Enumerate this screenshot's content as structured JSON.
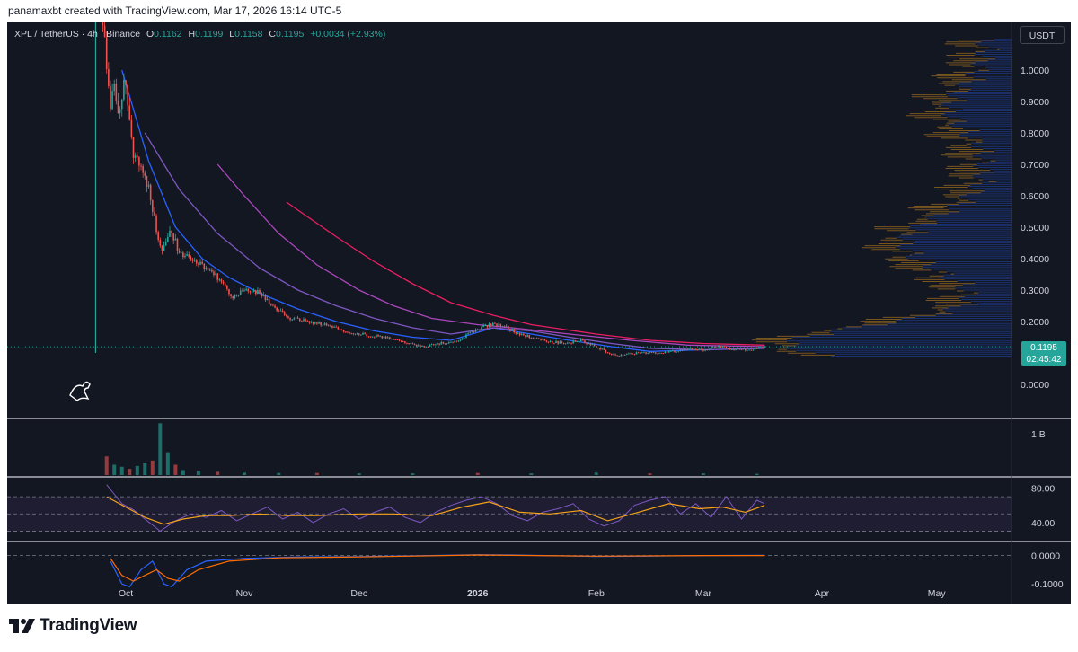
{
  "caption": "panamaxbt created with TradingView.com, Mar 17, 2026 16:14 UTC-5",
  "legend": {
    "symbol": "XPL / TetherUS · 4h · Binance",
    "open_label": "O",
    "open": "0.1162",
    "high_label": "H",
    "high": "0.1199",
    "low_label": "L",
    "low": "0.1158",
    "close_label": "C",
    "close": "0.1195",
    "change": "+0.0034 (+2.93%)"
  },
  "unit": "USDT",
  "last_price": {
    "price": "0.1195",
    "countdown": "02:45:42"
  },
  "brand": "TradingView",
  "colors": {
    "background": "#131722",
    "up": "#26a69a",
    "down": "#ef5350",
    "rsi": "#7e57c2",
    "rsi_ma": "#f7a21b",
    "macd": "#2962ff",
    "signal": "#ff6d00"
  },
  "chart_data": [
    {
      "type": "line",
      "panel": "price",
      "ylabel": "USDT",
      "ylim": [
        0,
        1.1
      ],
      "y_ticks": [
        "1.0000",
        "0.9000",
        "0.8000",
        "0.7000",
        "0.6000",
        "0.5000",
        "0.4000",
        "0.3000",
        "0.2000",
        "0.0000"
      ],
      "x_ticks": [
        "Oct",
        "Nov",
        "Dec",
        "2026",
        "Feb",
        "Mar",
        "Apr",
        "May"
      ],
      "series": [
        {
          "points": [
            [
              "Sep 25",
              1.15
            ],
            [
              "Sep 26",
              1.0
            ],
            [
              "Sep 27",
              0.87
            ],
            [
              "Sep 28",
              0.96
            ],
            [
              "Sep 29",
              0.84
            ],
            [
              "Sep 30",
              0.93
            ],
            [
              "Oct 1",
              0.98
            ],
            [
              "Oct 2",
              0.82
            ],
            [
              "Oct 3",
              0.74
            ],
            [
              "Oct 5",
              0.7
            ],
            [
              "Oct 7",
              0.63
            ],
            [
              "Oct 9",
              0.49
            ],
            [
              "Oct 10",
              0.44
            ],
            [
              "Oct 11",
              0.43
            ],
            [
              "Oct 13",
              0.49
            ],
            [
              "Oct 15",
              0.41
            ],
            [
              "Oct 18",
              0.4
            ],
            [
              "Oct 22",
              0.37
            ],
            [
              "Oct 26",
              0.33
            ],
            [
              "Oct 29",
              0.28
            ],
            [
              "Nov 2",
              0.3
            ],
            [
              "Nov 5",
              0.29
            ],
            [
              "Nov 9",
              0.24
            ],
            [
              "Nov 13",
              0.21
            ],
            [
              "Nov 18",
              0.2
            ],
            [
              "Nov 22",
              0.19
            ],
            [
              "Nov 27",
              0.17
            ],
            [
              "Dec 2",
              0.16
            ],
            [
              "Dec 7",
              0.15
            ],
            [
              "Dec 12",
              0.14
            ],
            [
              "Dec 17",
              0.12
            ],
            [
              "Dec 22",
              0.13
            ],
            [
              "Dec 27",
              0.14
            ],
            [
              "Dec 31",
              0.17
            ],
            [
              "Jan 4",
              0.19
            ],
            [
              "Jan 7",
              0.19
            ],
            [
              "Jan 12",
              0.16
            ],
            [
              "Jan 18",
              0.14
            ],
            [
              "Jan 24",
              0.13
            ],
            [
              "Jan 28",
              0.14
            ],
            [
              "Feb 1",
              0.12
            ],
            [
              "Feb 6",
              0.09
            ],
            [
              "Feb 12",
              0.1
            ],
            [
              "Feb 18",
              0.1
            ],
            [
              "Feb 24",
              0.11
            ],
            [
              "Mar 1",
              0.11
            ],
            [
              "Mar 5",
              0.12
            ],
            [
              "Mar 9",
              0.11
            ],
            [
              "Mar 13",
              0.11
            ],
            [
              "Mar 17",
              0.1195
            ]
          ]
        },
        {
          "points": [
            [
              "Sep 30",
              1.0
            ],
            [
              "Oct 7",
              0.71
            ],
            [
              "Oct 14",
              0.5
            ],
            [
              "Oct 21",
              0.4
            ],
            [
              "Oct 28",
              0.34
            ],
            [
              "Nov 5",
              0.29
            ],
            [
              "Nov 15",
              0.24
            ],
            [
              "Nov 25",
              0.2
            ],
            [
              "Dec 5",
              0.17
            ],
            [
              "Dec 15",
              0.15
            ],
            [
              "Dec 25",
              0.14
            ],
            [
              "Jan 5",
              0.18
            ],
            [
              "Jan 15",
              0.16
            ],
            [
              "Jan 25",
              0.14
            ],
            [
              "Feb 5",
              0.12
            ],
            [
              "Feb 15",
              0.105
            ],
            [
              "Mar 1",
              0.11
            ],
            [
              "Mar 17",
              0.115
            ]
          ]
        },
        {
          "points": [
            [
              "Oct 6",
              0.8
            ],
            [
              "Oct 15",
              0.62
            ],
            [
              "Oct 25",
              0.48
            ],
            [
              "Nov 5",
              0.37
            ],
            [
              "Nov 15",
              0.3
            ],
            [
              "Nov 25",
              0.25
            ],
            [
              "Dec 5",
              0.21
            ],
            [
              "Dec 15",
              0.18
            ],
            [
              "Dec 25",
              0.16
            ],
            [
              "Jan 5",
              0.18
            ],
            [
              "Jan 15",
              0.17
            ],
            [
              "Jan 25",
              0.15
            ],
            [
              "Feb 5",
              0.13
            ],
            [
              "Feb 15",
              0.115
            ],
            [
              "Mar 1",
              0.11
            ],
            [
              "Mar 17",
              0.115
            ]
          ]
        },
        {
          "points": [
            [
              "Oct 25",
              0.7
            ],
            [
              "Nov 1",
              0.6
            ],
            [
              "Nov 10",
              0.48
            ],
            [
              "Nov 20",
              0.38
            ],
            [
              "Dec 1",
              0.3
            ],
            [
              "Dec 10",
              0.25
            ],
            [
              "Dec 20",
              0.21
            ],
            [
              "Jan 1",
              0.19
            ],
            [
              "Jan 10",
              0.18
            ],
            [
              "Jan 25",
              0.16
            ],
            [
              "Feb 10",
              0.14
            ],
            [
              "Feb 25",
              0.125
            ],
            [
              "Mar 17",
              0.12
            ]
          ]
        },
        {
          "points": [
            [
              "Nov 12",
              0.58
            ],
            [
              "Nov 25",
              0.47
            ],
            [
              "Dec 5",
              0.39
            ],
            [
              "Dec 15",
              0.32
            ],
            [
              "Dec 25",
              0.26
            ],
            [
              "Jan 5",
              0.22
            ],
            [
              "Jan 15",
              0.19
            ],
            [
              "Feb 1",
              0.16
            ],
            [
              "Feb 15",
              0.14
            ],
            [
              "Mar 1",
              0.13
            ],
            [
              "Mar 17",
              0.125
            ]
          ]
        }
      ]
    },
    {
      "type": "bar",
      "panel": "volume",
      "y_ticks": [
        "1 B"
      ],
      "categories": [
        "Sep 26",
        "Sep 28",
        "Sep 30",
        "Oct 2",
        "Oct 4",
        "Oct 6",
        "Oct 8",
        "Oct 10",
        "Oct 12",
        "Oct 14",
        "Oct 16",
        "Oct 20",
        "Oct 25",
        "Nov 1",
        "Nov 10",
        "Nov 20",
        "Dec 1",
        "Dec 15",
        "Jan 1",
        "Jan 15",
        "Feb 1",
        "Feb 15",
        "Mar 1",
        "Mar 15"
      ],
      "values": [
        0.45,
        0.25,
        0.2,
        0.15,
        0.22,
        0.3,
        0.35,
        1.25,
        0.55,
        0.25,
        0.12,
        0.1,
        0.08,
        0.06,
        0.05,
        0.05,
        0.04,
        0.04,
        0.05,
        0.04,
        0.06,
        0.04,
        0.04,
        0.03
      ]
    },
    {
      "type": "line",
      "panel": "rsi",
      "ylim": [
        20,
        90
      ],
      "y_ticks": [
        "80.00",
        "40.00"
      ],
      "series": [
        {
          "points": [
            [
              "Sep 26",
              84
            ],
            [
              "Sep 30",
              62
            ],
            [
              "Oct 3",
              55
            ],
            [
              "Oct 6",
              44
            ],
            [
              "Oct 10",
              30
            ],
            [
              "Oct 14",
              42
            ],
            [
              "Oct 18",
              50
            ],
            [
              "Oct 22",
              46
            ],
            [
              "Oct 26",
              54
            ],
            [
              "Oct 30",
              42
            ],
            [
              "Nov 3",
              50
            ],
            [
              "Nov 7",
              58
            ],
            [
              "Nov 11",
              44
            ],
            [
              "Nov 15",
              52
            ],
            [
              "Nov 19",
              40
            ],
            [
              "Nov 23",
              50
            ],
            [
              "Nov 27",
              56
            ],
            [
              "Dec 1",
              44
            ],
            [
              "Dec 5",
              52
            ],
            [
              "Dec 9",
              58
            ],
            [
              "Dec 13",
              46
            ],
            [
              "Dec 17",
              40
            ],
            [
              "Dec 21",
              52
            ],
            [
              "Dec 25",
              60
            ],
            [
              "Dec 29",
              66
            ],
            [
              "Jan 2",
              70
            ],
            [
              "Jan 6",
              62
            ],
            [
              "Jan 10",
              48
            ],
            [
              "Jan 14",
              42
            ],
            [
              "Jan 18",
              52
            ],
            [
              "Jan 22",
              56
            ],
            [
              "Jan 26",
              62
            ],
            [
              "Jan 30",
              44
            ],
            [
              "Feb 3",
              36
            ],
            [
              "Feb 7",
              42
            ],
            [
              "Feb 11",
              60
            ],
            [
              "Feb 15",
              66
            ],
            [
              "Feb 19",
              70
            ],
            [
              "Feb 23",
              50
            ],
            [
              "Feb 27",
              62
            ],
            [
              "Mar 3",
              46
            ],
            [
              "Mar 7",
              70
            ],
            [
              "Mar 11",
              44
            ],
            [
              "Mar 15",
              66
            ],
            [
              "Mar 17",
              62
            ]
          ]
        },
        {
          "points": [
            [
              "Sep 26",
              70
            ],
            [
              "Oct 1",
              58
            ],
            [
              "Oct 6",
              46
            ],
            [
              "Oct 11",
              38
            ],
            [
              "Oct 16",
              44
            ],
            [
              "Oct 22",
              48
            ],
            [
              "Oct 28",
              48
            ],
            [
              "Nov 5",
              50
            ],
            [
              "Nov 12",
              48
            ],
            [
              "Nov 20",
              48
            ],
            [
              "Dec 1",
              50
            ],
            [
              "Dec 10",
              50
            ],
            [
              "Dec 20",
              48
            ],
            [
              "Dec 28",
              58
            ],
            [
              "Jan 4",
              64
            ],
            [
              "Jan 12",
              52
            ],
            [
              "Jan 20",
              50
            ],
            [
              "Jan 28",
              54
            ],
            [
              "Feb 4",
              42
            ],
            [
              "Feb 12",
              52
            ],
            [
              "Feb 20",
              62
            ],
            [
              "Feb 28",
              56
            ],
            [
              "Mar 6",
              58
            ],
            [
              "Mar 12",
              52
            ],
            [
              "Mar 17",
              60
            ]
          ]
        }
      ]
    },
    {
      "type": "line",
      "panel": "macd",
      "ylim": [
        -0.15,
        0.04
      ],
      "y_ticks": [
        "0.0000",
        "-0.1000"
      ],
      "series": [
        {
          "points": [
            [
              "Sep 27",
              -0.02
            ],
            [
              "Sep 30",
              -0.1
            ],
            [
              "Oct 2",
              -0.11
            ],
            [
              "Oct 5",
              -0.05
            ],
            [
              "Oct 8",
              -0.02
            ],
            [
              "Oct 11",
              -0.1
            ],
            [
              "Oct 13",
              -0.11
            ],
            [
              "Oct 17",
              -0.05
            ],
            [
              "Oct 22",
              -0.02
            ],
            [
              "Nov 1",
              -0.01
            ],
            [
              "Nov 15",
              -0.005
            ],
            [
              "Dec 1",
              -0.004
            ],
            [
              "Jan 1",
              0.003
            ],
            [
              "Jan 10",
              0.002
            ],
            [
              "Feb 1",
              -0.003
            ],
            [
              "Feb 15",
              -0.002
            ],
            [
              "Mar 1",
              0.0
            ],
            [
              "Mar 17",
              0.001
            ]
          ]
        },
        {
          "points": [
            [
              "Sep 27",
              -0.01
            ],
            [
              "Sep 30",
              -0.07
            ],
            [
              "Oct 3",
              -0.09
            ],
            [
              "Oct 6",
              -0.07
            ],
            [
              "Oct 9",
              -0.05
            ],
            [
              "Oct 12",
              -0.08
            ],
            [
              "Oct 15",
              -0.09
            ],
            [
              "Oct 20",
              -0.05
            ],
            [
              "Oct 28",
              -0.02
            ],
            [
              "Nov 10",
              -0.008
            ],
            [
              "Dec 1",
              -0.005
            ],
            [
              "Jan 1",
              0.002
            ],
            [
              "Feb 1",
              -0.002
            ],
            [
              "Mar 1",
              0.0
            ],
            [
              "Mar 17",
              0.0
            ]
          ]
        }
      ]
    }
  ]
}
